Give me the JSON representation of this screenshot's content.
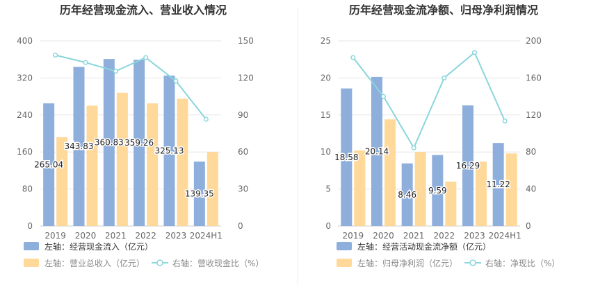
{
  "chart_data": [
    {
      "type": "bar",
      "title": "历年经营现金流入、营业收入情况",
      "categories": [
        "2019",
        "2020",
        "2021",
        "2022",
        "2023",
        "2024H1"
      ],
      "left_axis": {
        "ticks": [
          "0",
          "80",
          "160",
          "240",
          "320",
          "400"
        ],
        "ylim": [
          0,
          400
        ]
      },
      "right_axis": {
        "ticks": [
          "0",
          "30",
          "60",
          "90",
          "120",
          "150"
        ],
        "ylim": [
          0,
          150
        ]
      },
      "series": [
        {
          "name": "左轴：经营现金流入（亿元）",
          "type": "bar",
          "axis": "left",
          "color": "#8eaedc",
          "values": [
            265.04,
            343.83,
            360.83,
            359.26,
            325.13,
            139.35
          ],
          "labels": [
            "265.04",
            "343.83",
            "360.83",
            "359.26",
            "325.13",
            "139.35"
          ]
        },
        {
          "name": "左轴：营业总收入（亿元）",
          "type": "bar",
          "axis": "left",
          "color": "#fed999",
          "values": [
            192,
            260,
            288,
            265,
            275,
            160
          ]
        },
        {
          "name": "右轴：营收现金比（%）",
          "type": "line",
          "axis": "right",
          "color": "#89d6dc",
          "values": [
            138.5,
            132.5,
            125.5,
            136.5,
            117.5,
            86.5
          ]
        }
      ],
      "grid": true,
      "legend_position": "bottom-left"
    },
    {
      "type": "bar",
      "title": "历年经营现金流净额、归母净利润情况",
      "categories": [
        "2019",
        "2020",
        "2021",
        "2022",
        "2023",
        "2024H1"
      ],
      "left_axis": {
        "ticks": [
          "0",
          "5",
          "10",
          "15",
          "20",
          "25"
        ],
        "ylim": [
          0,
          25
        ]
      },
      "right_axis": {
        "ticks": [
          "0",
          "40",
          "80",
          "120",
          "160",
          "200"
        ],
        "ylim": [
          0,
          200
        ]
      },
      "series": [
        {
          "name": "左轴：经营活动现金流净额（亿元）",
          "type": "bar",
          "axis": "left",
          "color": "#8eaedc",
          "values": [
            18.58,
            20.14,
            8.46,
            9.59,
            16.29,
            11.22
          ],
          "labels": [
            "18.58",
            "20.14",
            "8.46",
            "9.59",
            "16.29",
            "11.22"
          ]
        },
        {
          "name": "左轴：归母净利润（亿元）",
          "type": "bar",
          "axis": "left",
          "color": "#fed999",
          "values": [
            10.2,
            14.4,
            10.0,
            6.0,
            8.7,
            9.8
          ]
        },
        {
          "name": "右轴：净现比（%）",
          "type": "line",
          "axis": "right",
          "color": "#89d6dc",
          "values": [
            182,
            140,
            84.5,
            160,
            187.5,
            113.5
          ]
        }
      ],
      "grid": true,
      "legend_position": "bottom-left"
    }
  ]
}
